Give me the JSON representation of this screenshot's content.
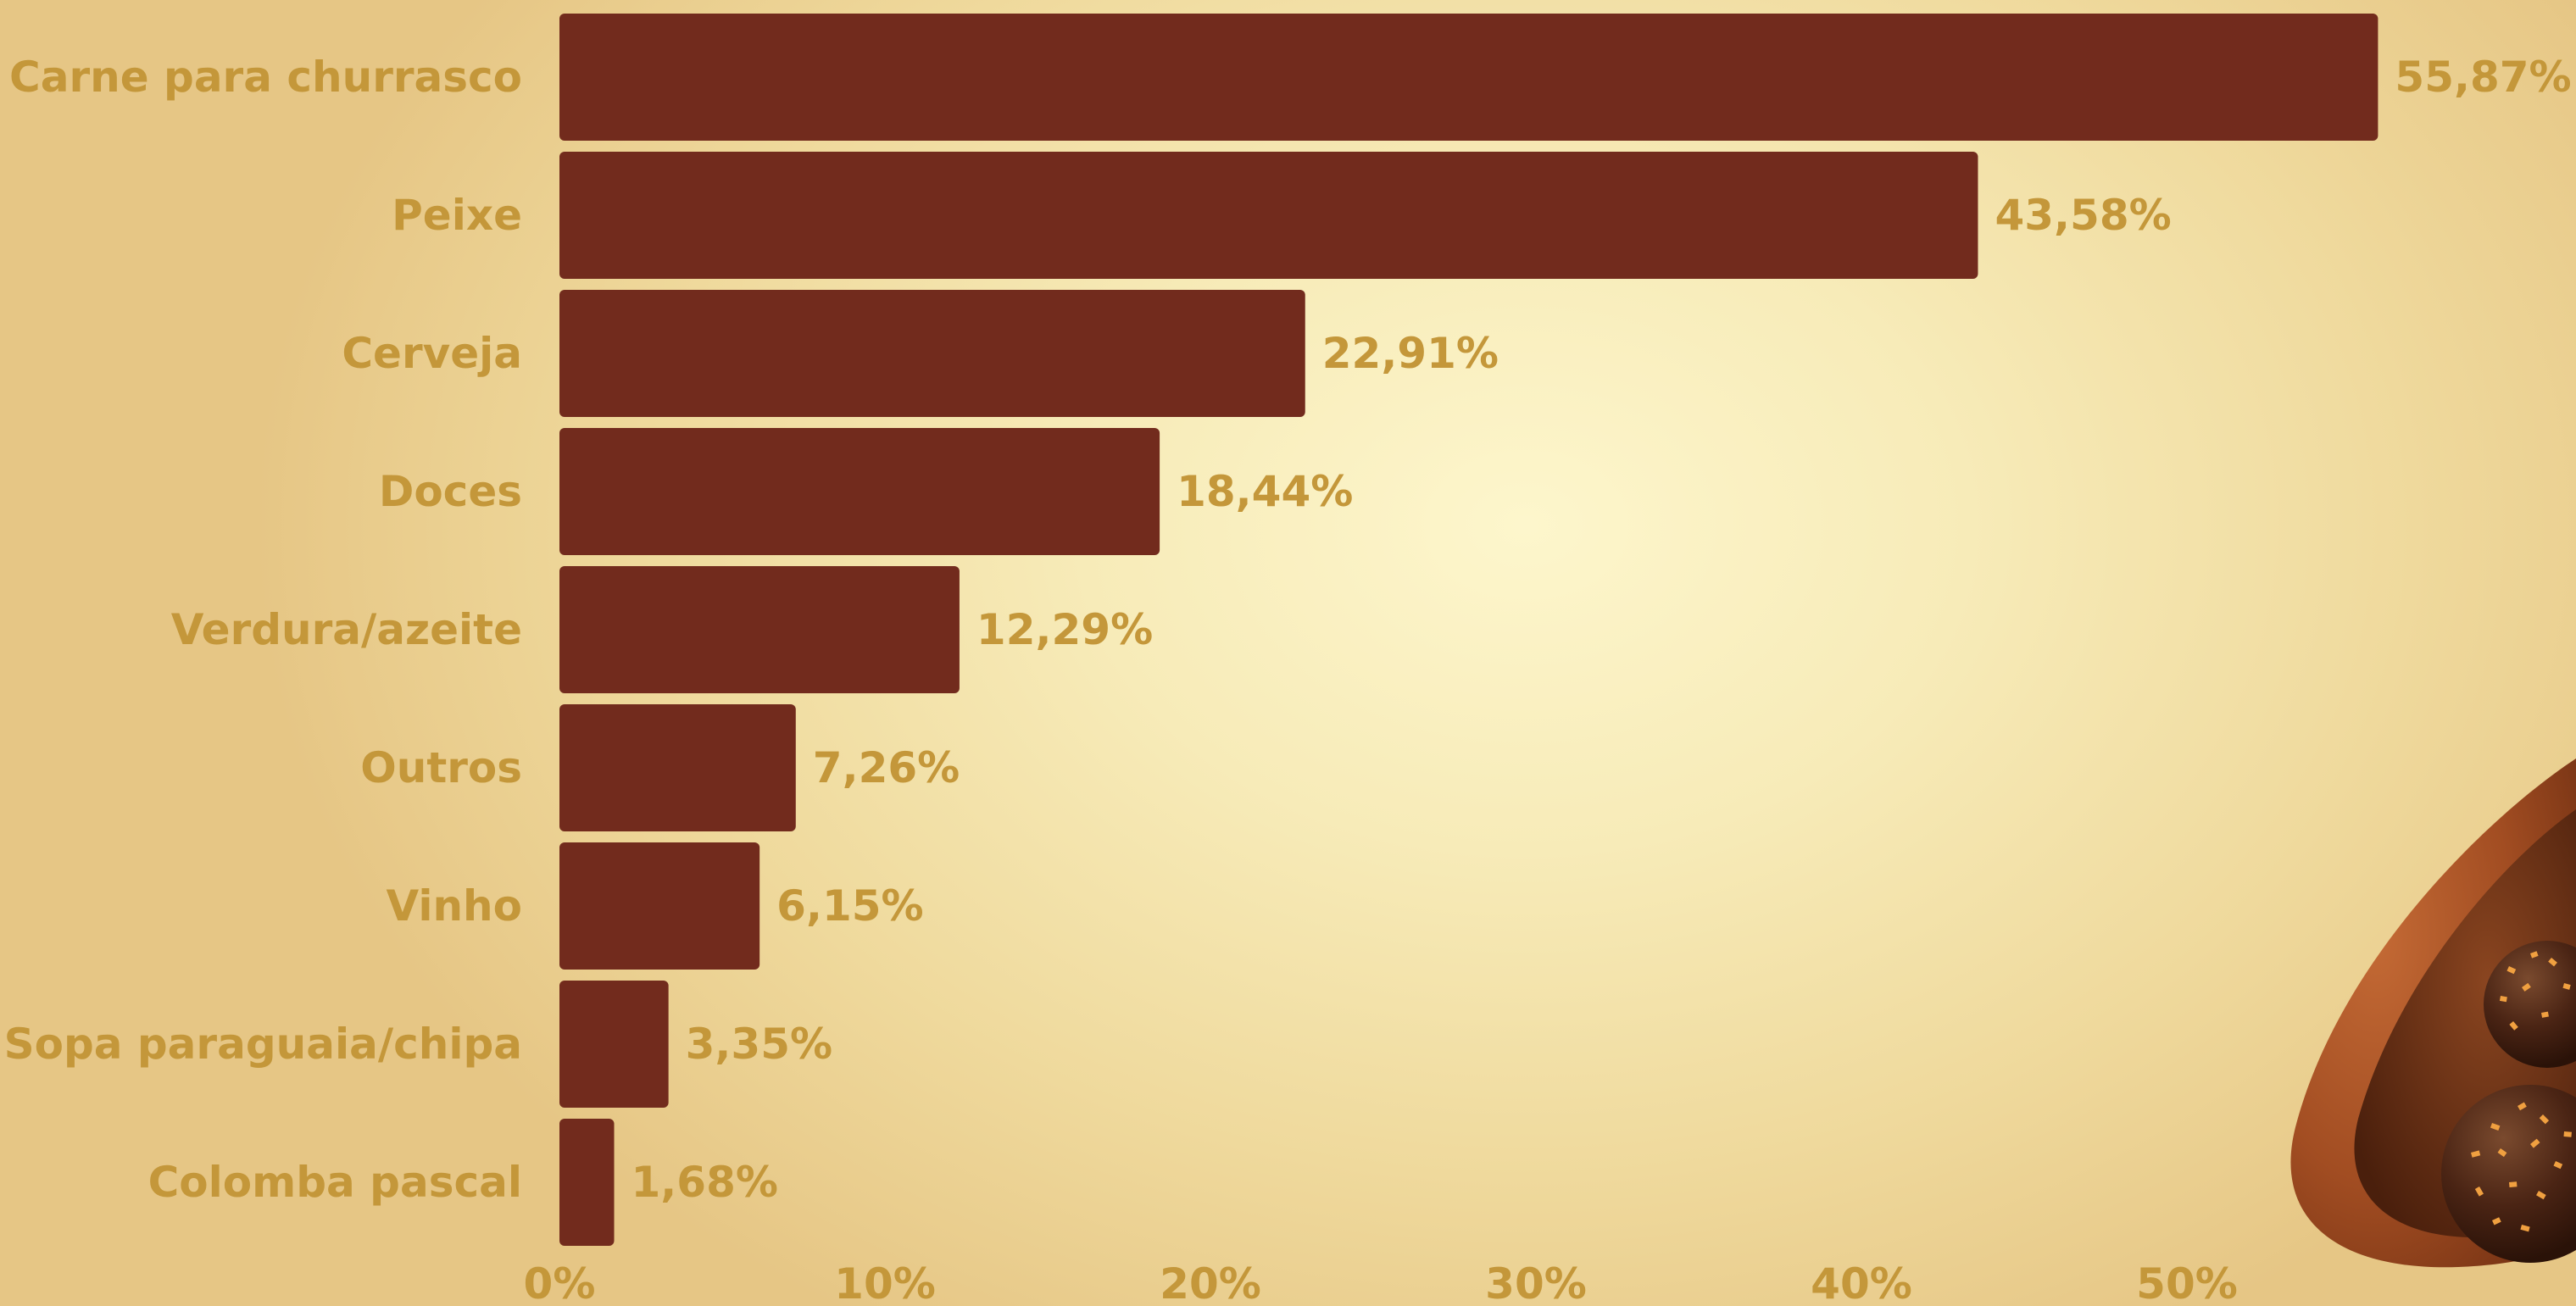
{
  "chart_data": {
    "type": "bar",
    "orientation": "horizontal",
    "categories": [
      "Carne para churrasco",
      "Peixe",
      "Cerveja",
      "Doces",
      "Verdura/azeite",
      "Outros",
      "Vinho",
      "Sopa paraguaia/chipa",
      "Colomba pascal"
    ],
    "values": [
      55.87,
      43.58,
      22.91,
      18.44,
      12.29,
      7.26,
      6.15,
      3.35,
      1.68
    ],
    "value_labels": [
      "55,87%",
      "43,58%",
      "22,91%",
      "18,44%",
      "12,29%",
      "7,26%",
      "6,15%",
      "3,35%",
      "1,68%"
    ],
    "x_ticks": [
      0,
      10,
      20,
      30,
      40,
      50
    ],
    "x_tick_labels": [
      "0%",
      "10%",
      "20%",
      "30%",
      "40%",
      "50%"
    ],
    "xlim": [
      0,
      62
    ],
    "grid": false,
    "legend": "none",
    "title": "",
    "xlabel": "",
    "ylabel": ""
  },
  "colors": {
    "bar": "#722b1d",
    "label": "#c4973a",
    "background": "#f7ebb8"
  },
  "decoration": {
    "icon": "chocolate-egg-icon"
  }
}
